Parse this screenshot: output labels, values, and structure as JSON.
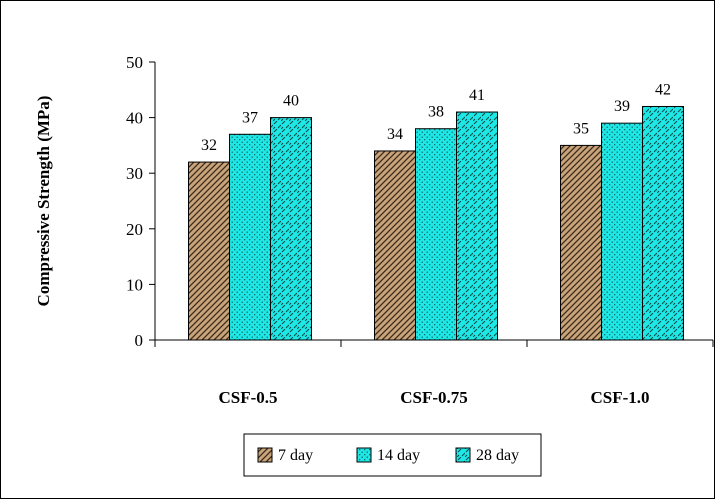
{
  "chart_data": {
    "type": "bar",
    "title": "",
    "xlabel": "",
    "ylabel": "Compressive Strength (MPa)",
    "ylim": [
      0,
      50
    ],
    "yticks": [
      0,
      10,
      20,
      30,
      40,
      50
    ],
    "grid": false,
    "legend_position": "bottom",
    "categories": [
      "CSF-0.5",
      "CSF-0.75",
      "CSF-1.0"
    ],
    "series": [
      {
        "name": "7 day",
        "values": [
          32,
          34,
          35
        ],
        "color": "#c9a37a",
        "pattern": "diagonal-stripes"
      },
      {
        "name": "14 day",
        "values": [
          37,
          38,
          39
        ],
        "color": "#1ee8e6",
        "pattern": "dots"
      },
      {
        "name": "28 day",
        "values": [
          40,
          41,
          42
        ],
        "color": "#1ee8e6",
        "pattern": "dashes"
      }
    ]
  }
}
